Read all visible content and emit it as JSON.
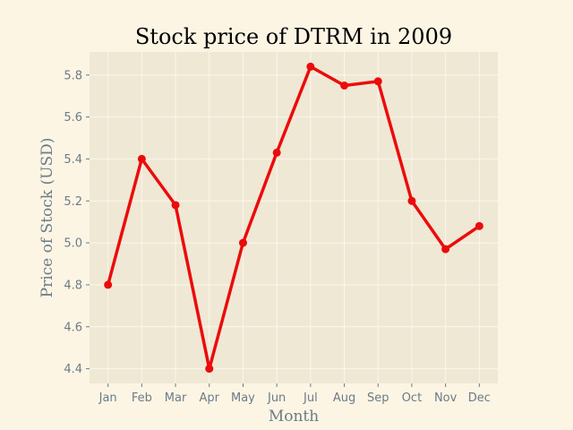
{
  "chart_data": {
    "type": "line",
    "title": "Stock price of DTRM in 2009",
    "xlabel": "Month",
    "ylabel": "Price of Stock (USD)",
    "categories": [
      "Jan",
      "Feb",
      "Mar",
      "Apr",
      "May",
      "Jun",
      "Jul",
      "Aug",
      "Sep",
      "Oct",
      "Nov",
      "Dec"
    ],
    "series": [
      {
        "values": [
          4.8,
          5.4,
          5.18,
          4.4,
          5.0,
          5.43,
          5.84,
          5.75,
          5.77,
          5.2,
          4.97,
          5.08
        ]
      }
    ],
    "yticks": [
      "4.4",
      "4.6",
      "4.8",
      "5.0",
      "5.2",
      "5.4",
      "5.6",
      "5.8"
    ],
    "ylim": [
      4.33,
      5.91
    ],
    "grid": true,
    "legend": "none"
  },
  "colors": {
    "background": "#fcf5e4",
    "plot_area": "#efe8d5",
    "grid": "#fbf7ec",
    "line": "#ec0b0b",
    "tick_text": "#6b7b87",
    "title_text": "#000000"
  }
}
